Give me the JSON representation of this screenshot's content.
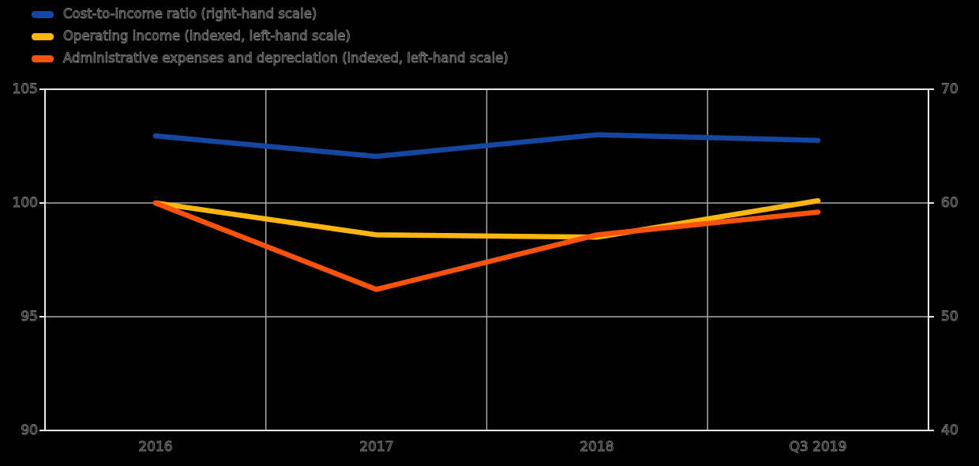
{
  "legend": {
    "items": [
      {
        "label": "Cost-to-income ratio (right-hand scale)",
        "color": "#1547a0"
      },
      {
        "label": "Operating income (indexed, left-hand scale)",
        "color": "#fdb60d"
      },
      {
        "label": "Administrative expenses and depreciation (indexed, left-hand scale)",
        "color": "#fb530b"
      }
    ]
  },
  "chart_data": {
    "type": "line",
    "title": "",
    "categories": [
      "2016",
      "2017",
      "2018",
      "Q3 2019"
    ],
    "series": [
      {
        "name": "Cost-to-income ratio (right-hand scale)",
        "axis": "right",
        "color": "#1547a0",
        "values": [
          65.9,
          64.1,
          66.0,
          65.5
        ]
      },
      {
        "name": "Operating income (indexed, left-hand scale)",
        "axis": "left",
        "color": "#fdb60d",
        "values": [
          100.0,
          98.6,
          98.5,
          100.1
        ]
      },
      {
        "name": "Administrative expenses and depreciation (indexed, left-hand scale)",
        "axis": "left",
        "color": "#fb530b",
        "values": [
          100.0,
          96.2,
          98.6,
          99.6
        ]
      }
    ],
    "left_axis": {
      "range": [
        90,
        105
      ],
      "ticks": [
        105,
        100,
        95,
        90
      ],
      "labels": [
        "105",
        "100",
        "95",
        "90"
      ]
    },
    "right_axis": {
      "range": [
        40,
        70
      ],
      "ticks": [
        70,
        60,
        50,
        40
      ],
      "labels": [
        "70",
        "60",
        "50",
        "40"
      ]
    },
    "grid": true,
    "legend_position": "top-left",
    "background_color": "#000000",
    "styles": {
      "grid_color": "#a9a9a9",
      "frame_color": "#e8e8e8",
      "line_width": 6.5
    }
  }
}
